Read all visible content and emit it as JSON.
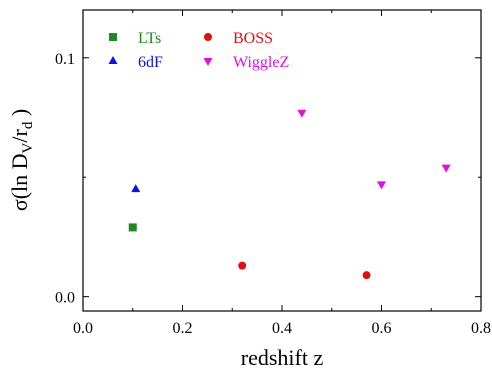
{
  "chart_data": {
    "type": "scatter",
    "title": "",
    "xlabel": "redshift z",
    "ylabel": {
      "prefix": "σ(ln D",
      "sub1": "V",
      "mid": "/r",
      "sub2": "d",
      "suffix": " )"
    },
    "xlim": [
      0.0,
      0.8
    ],
    "ylim": [
      -0.006,
      0.12
    ],
    "x_ticks": [
      0.0,
      0.2,
      0.4,
      0.6,
      0.8
    ],
    "x_tick_labels": [
      "0.0",
      "0.2",
      "0.4",
      "0.6",
      "0.8"
    ],
    "y_ticks": [
      0.0,
      0.1
    ],
    "y_tick_labels": [
      "0.0",
      "0.1"
    ],
    "grid": false,
    "legend_placement": "top-left",
    "series": [
      {
        "name": "LTs",
        "marker": "square",
        "color": "#1f8a1f",
        "points": [
          {
            "x": 0.1,
            "y": 0.029
          }
        ]
      },
      {
        "name": "6dF",
        "marker": "triangle-up",
        "color": "#1010e0",
        "points": [
          {
            "x": 0.106,
            "y": 0.045
          }
        ]
      },
      {
        "name": "BOSS",
        "marker": "circle",
        "color": "#e01010",
        "points": [
          {
            "x": 0.32,
            "y": 0.013
          },
          {
            "x": 0.57,
            "y": 0.009
          }
        ]
      },
      {
        "name": "WiggleZ",
        "marker": "triangle-down",
        "color": "#e010e0",
        "points": [
          {
            "x": 0.44,
            "y": 0.077
          },
          {
            "x": 0.6,
            "y": 0.047
          },
          {
            "x": 0.73,
            "y": 0.054
          }
        ]
      }
    ]
  }
}
